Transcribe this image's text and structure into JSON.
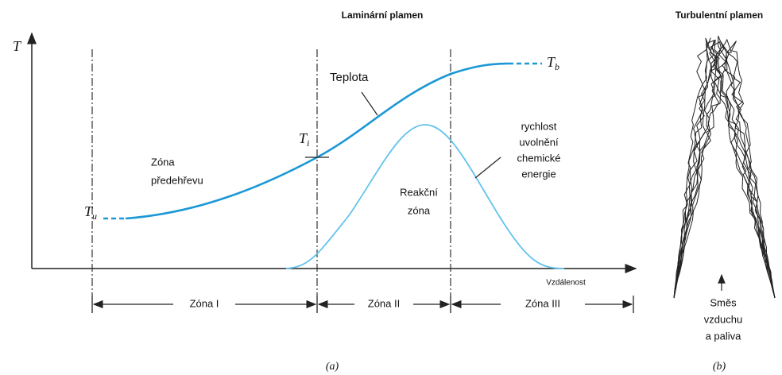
{
  "titles": {
    "laminar": "Laminární plamen",
    "turbulent": "Turbulentní plamen"
  },
  "axis": {
    "y": "T",
    "x": "Vzdálenost"
  },
  "temperature": {
    "label": "Teplota",
    "tb": {
      "symbol": "T",
      "subscript": "b"
    },
    "ti": {
      "symbol": "T",
      "subscript": "i"
    },
    "tu": {
      "symbol": "T",
      "subscript": "u"
    }
  },
  "preheat": [
    "Zóna",
    "předehřevu"
  ],
  "reaction": [
    "Reakční",
    "zóna"
  ],
  "energy": [
    "rychlost",
    "uvolnění",
    "chemické",
    "energie"
  ],
  "zones": [
    "Zóna I",
    "Zóna II",
    "Zóna III"
  ],
  "mixture": [
    "Směs",
    "vzduchu",
    "a paliva"
  ],
  "captions": {
    "a": "(a)",
    "b": "(b)"
  }
}
